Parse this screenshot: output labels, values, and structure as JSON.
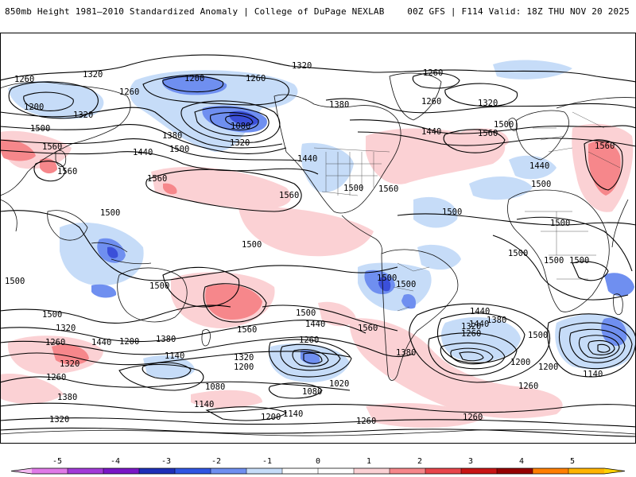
{
  "header": {
    "title_left": "850mb Height 1981–2010 Standardized Anomaly | College of DuPage NEXLAB",
    "title_right": "00Z GFS | F114 Valid: 18Z THU NOV 20 2025"
  },
  "colors": {
    "neg_strong": "#3b4fd9",
    "neg_mod": "#6f8ff0",
    "neg_weak": "#c6dcf8",
    "pos_weak": "#fbd1d4",
    "pos_mod": "#f6878b",
    "pos_strong": "#e8454b",
    "contour": "#000000",
    "coast": "#111111"
  },
  "map": {
    "contour_labels": [
      {
        "id": "c1320-a",
        "text": "1320"
      },
      {
        "id": "c1260-a",
        "text": "1260"
      },
      {
        "id": "c1260-b",
        "text": "1260"
      },
      {
        "id": "c1200-a",
        "text": "1200"
      },
      {
        "id": "c1200-b",
        "text": "1200"
      },
      {
        "id": "c1260-c",
        "text": "1260"
      },
      {
        "id": "c1320-b",
        "text": "1320"
      },
      {
        "id": "c1320-c",
        "text": "1320"
      },
      {
        "id": "c1080-a",
        "text": "1080"
      },
      {
        "id": "c1380-a",
        "text": "1380"
      },
      {
        "id": "c1320-d",
        "text": "1320"
      },
      {
        "id": "c1500-a",
        "text": "1500"
      },
      {
        "id": "c1440-a",
        "text": "1440"
      },
      {
        "id": "c1500-b",
        "text": "1500"
      },
      {
        "id": "c1560-a",
        "text": "1560"
      },
      {
        "id": "c1560-b",
        "text": "1560"
      },
      {
        "id": "c1560-c",
        "text": "1560"
      },
      {
        "id": "c1380-b",
        "text": "1380"
      },
      {
        "id": "c1260-d",
        "text": "1260"
      },
      {
        "id": "c1260-e",
        "text": "1260"
      },
      {
        "id": "c1320-e",
        "text": "1320"
      },
      {
        "id": "c1440-b",
        "text": "1440"
      },
      {
        "id": "c1440-c",
        "text": "1440"
      },
      {
        "id": "c1500-c",
        "text": "1500"
      },
      {
        "id": "c1560-d",
        "text": "1560"
      },
      {
        "id": "c1560-e",
        "text": "1560"
      },
      {
        "id": "c1500-d",
        "text": "1500"
      },
      {
        "id": "c1560-f",
        "text": "1560"
      },
      {
        "id": "c1560-g",
        "text": "1560"
      },
      {
        "id": "c1440-d",
        "text": "1440"
      },
      {
        "id": "c1500-e",
        "text": "1500"
      },
      {
        "id": "c1500-f",
        "text": "1500"
      },
      {
        "id": "c1500-g",
        "text": "1500"
      },
      {
        "id": "c1500-h",
        "text": "1500"
      },
      {
        "id": "c1500-i",
        "text": "1500"
      },
      {
        "id": "c1500-j",
        "text": "1500"
      },
      {
        "id": "c1500-k",
        "text": "1500"
      },
      {
        "id": "c1500-l",
        "text": "1500"
      },
      {
        "id": "c1500-m",
        "text": "1500"
      },
      {
        "id": "c1500-n",
        "text": "1500"
      },
      {
        "id": "c1500-o",
        "text": "1500"
      },
      {
        "id": "c1500-p",
        "text": "1500"
      },
      {
        "id": "c1500-q",
        "text": "1500"
      },
      {
        "id": "c1560-h",
        "text": "1560"
      },
      {
        "id": "c1500-r",
        "text": "1500"
      },
      {
        "id": "c1440-e",
        "text": "1440"
      },
      {
        "id": "c1440-f",
        "text": "1440"
      },
      {
        "id": "c1560-i",
        "text": "1560"
      },
      {
        "id": "c1440-g",
        "text": "1440"
      },
      {
        "id": "c1500-s",
        "text": "1500"
      },
      {
        "id": "c1380-c",
        "text": "1380"
      },
      {
        "id": "c1380-d",
        "text": "1380"
      },
      {
        "id": "c1320-f",
        "text": "1320"
      },
      {
        "id": "c1260-f",
        "text": "1260"
      },
      {
        "id": "c1380-e",
        "text": "1380"
      },
      {
        "id": "c1440-h",
        "text": "1440"
      },
      {
        "id": "c1320-g",
        "text": "1320"
      },
      {
        "id": "c1260-g",
        "text": "1260"
      },
      {
        "id": "c1140-a",
        "text": "1140"
      },
      {
        "id": "c1200-c",
        "text": "1200"
      },
      {
        "id": "c1320-h",
        "text": "1320"
      },
      {
        "id": "c1200-d",
        "text": "1200"
      },
      {
        "id": "c1260-h",
        "text": "1260"
      },
      {
        "id": "c1020-a",
        "text": "1020"
      },
      {
        "id": "c1080-b",
        "text": "1080"
      },
      {
        "id": "c1320-i",
        "text": "1320"
      },
      {
        "id": "c1260-i",
        "text": "1260"
      },
      {
        "id": "c1200-e",
        "text": "1200"
      },
      {
        "id": "c1140-b",
        "text": "1140"
      },
      {
        "id": "c1200-f",
        "text": "1200"
      },
      {
        "id": "c1080-c",
        "text": "1080"
      },
      {
        "id": "c1140-c",
        "text": "1140"
      },
      {
        "id": "c1200-g",
        "text": "1200"
      },
      {
        "id": "c1140-d",
        "text": "1140"
      },
      {
        "id": "c1260-j",
        "text": "1260"
      },
      {
        "id": "c1260-k",
        "text": "1260"
      },
      {
        "id": "c1260-l",
        "text": "1260"
      },
      {
        "id": "c1380-f",
        "text": "1380"
      },
      {
        "id": "c1320-j",
        "text": "1320"
      }
    ]
  },
  "colorbar": {
    "ticks": [
      "-5",
      "-4",
      "-3",
      "-2",
      "-1",
      "0",
      "1",
      "2",
      "3",
      "4",
      "5"
    ],
    "segment_colors": [
      "#e07ae8",
      "#a23ad8",
      "#7a16c6",
      "#1e2fb8",
      "#3055e2",
      "#6f8ff0",
      "#c6dcf8",
      "#ffffff",
      "#ffffff",
      "#fbd1d4",
      "#f6878b",
      "#e8454b",
      "#c81414",
      "#960000",
      "#ff7f00",
      "#ffb400"
    ]
  }
}
